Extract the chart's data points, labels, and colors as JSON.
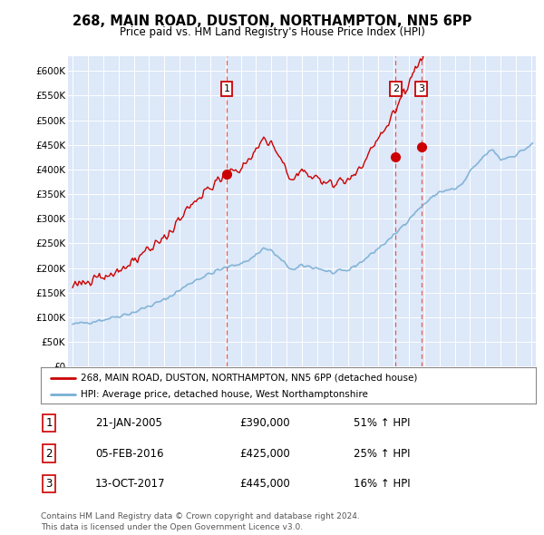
{
  "title": "268, MAIN ROAD, DUSTON, NORTHAMPTON, NN5 6PP",
  "subtitle": "Price paid vs. HM Land Registry's House Price Index (HPI)",
  "ytick_labels": [
    "£0",
    "£50K",
    "£100K",
    "£150K",
    "£200K",
    "£250K",
    "£300K",
    "£350K",
    "£400K",
    "£450K",
    "£500K",
    "£550K",
    "£600K"
  ],
  "ytick_values": [
    0,
    50000,
    100000,
    150000,
    200000,
    250000,
    300000,
    350000,
    400000,
    450000,
    500000,
    550000,
    600000
  ],
  "xlim_left": 1994.7,
  "xlim_right": 2025.3,
  "ylim_bottom": 0,
  "ylim_top": 630000,
  "plot_bg": "#dde8f8",
  "grid_color": "#ffffff",
  "red_color": "#cc0000",
  "blue_color": "#7aafd4",
  "vline_color": "#dd4444",
  "transactions": [
    {
      "label": "1",
      "year": 2005.08,
      "price": 390000,
      "date": "21-JAN-2005",
      "hpi_pct": "51% ↑ HPI"
    },
    {
      "label": "2",
      "year": 2016.12,
      "price": 425000,
      "date": "05-FEB-2016",
      "hpi_pct": "25% ↑ HPI"
    },
    {
      "label": "3",
      "year": 2017.8,
      "price": 445000,
      "date": "13-OCT-2017",
      "hpi_pct": "16% ↑ HPI"
    }
  ],
  "legend_label_red": "268, MAIN ROAD, DUSTON, NORTHAMPTON, NN5 6PP (detached house)",
  "legend_label_blue": "HPI: Average price, detached house, West Northamptonshire",
  "footer": "Contains HM Land Registry data © Crown copyright and database right 2024.\nThis data is licensed under the Open Government Licence v3.0."
}
